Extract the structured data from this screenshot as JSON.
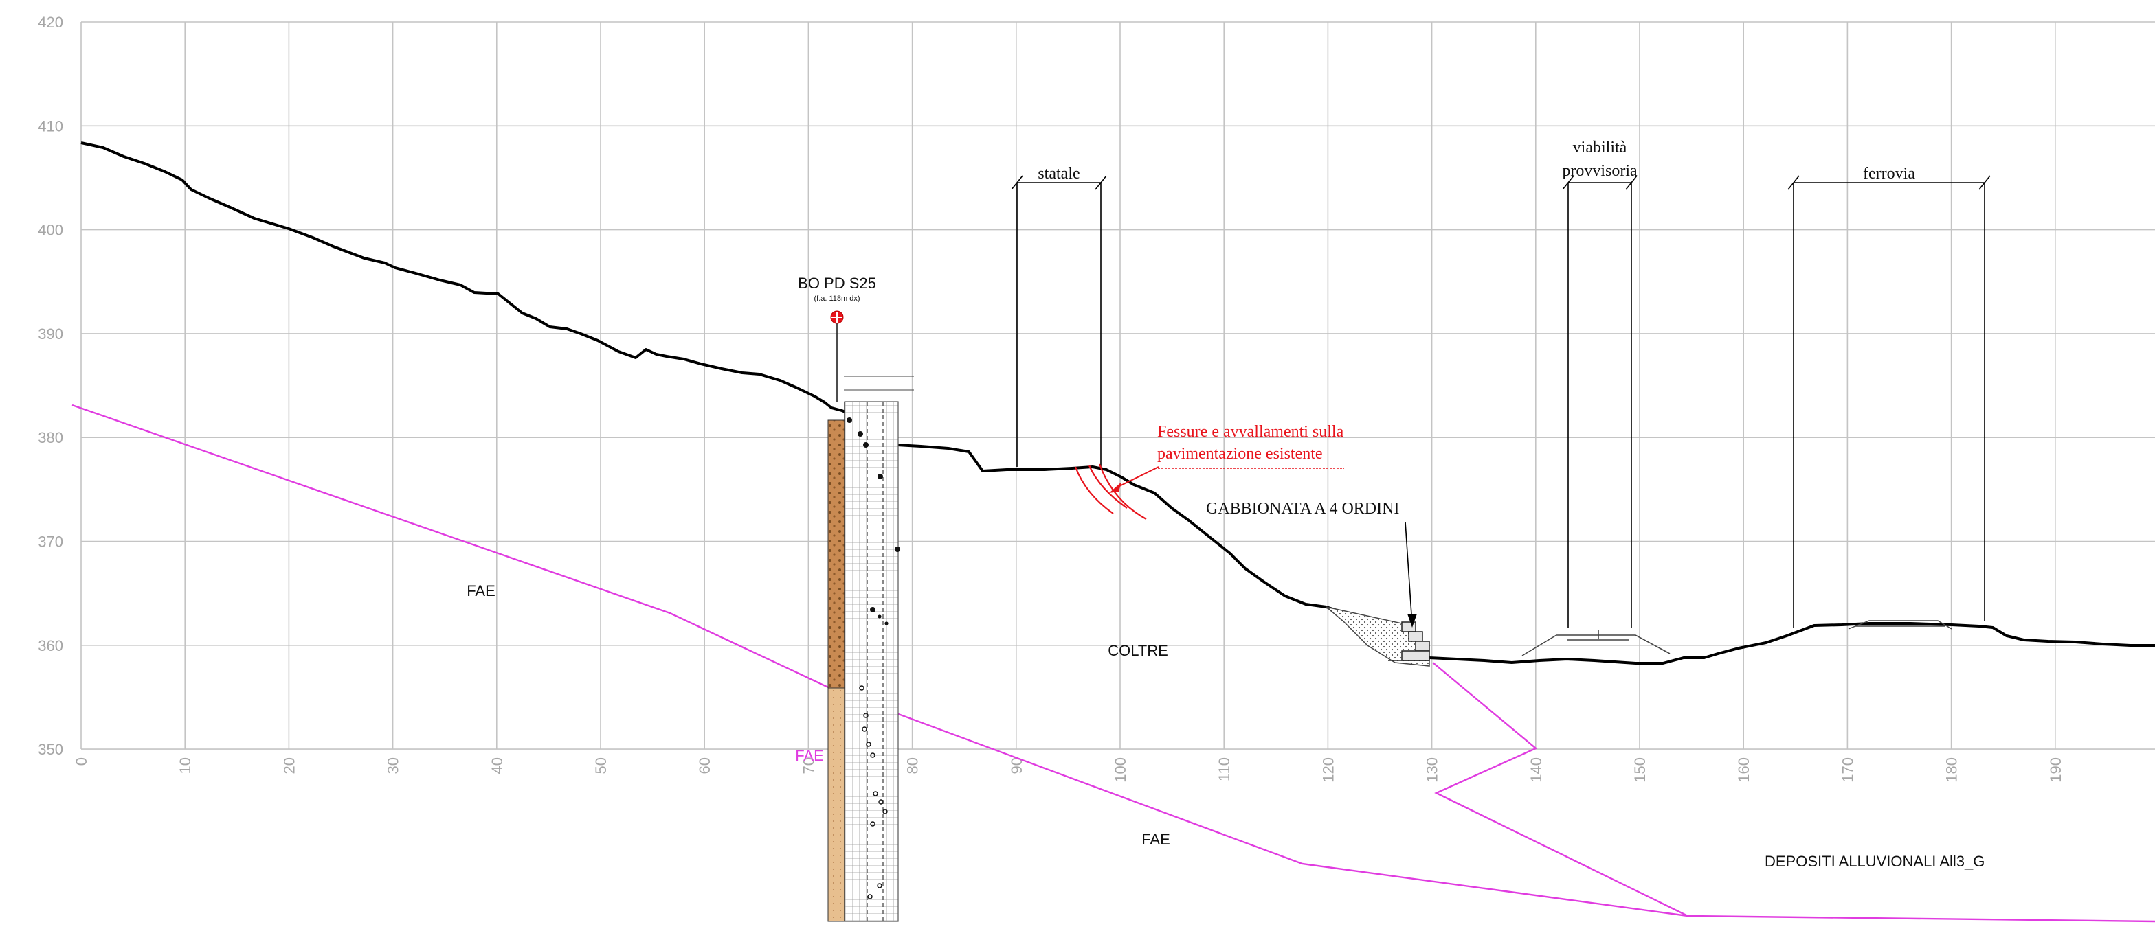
{
  "axes": {
    "x_ticks": [
      "0",
      "10",
      "20",
      "30",
      "40",
      "50",
      "60",
      "70",
      "80",
      "90",
      "100",
      "110",
      "120",
      "130",
      "140",
      "150",
      "160",
      "170",
      "180",
      "190"
    ],
    "y_ticks": [
      "420",
      "410",
      "400",
      "390",
      "380",
      "370",
      "360",
      "350"
    ]
  },
  "borehole": {
    "title": "BO PD S25",
    "subtitle": "(f.a. 118m dx)"
  },
  "annotations": {
    "statale": "statale",
    "viabilita_line1": "viabilità",
    "viabilita_line2": "provvisoria",
    "ferrovia": "ferrovia",
    "fessure_line1": "Fessure e avvallamenti sulla",
    "fessure_line2": "pavimentazione esistente",
    "gabbionata": "GABBIONATA A 4 ORDINI"
  },
  "units": {
    "fae_upper_left": "FAE",
    "fae_magenta": "FAE",
    "coltre": "COLTRE",
    "fae_lower": "FAE",
    "depositi": "DEPOSITI ALLUVIONALI All3_G"
  },
  "colors": {
    "ground_profile": "#000000",
    "geological_boundary": "#e03ce0",
    "annotation_red": "#e8141c",
    "borehole_column": "#d9a878",
    "grid": "#c4c4c4"
  }
}
